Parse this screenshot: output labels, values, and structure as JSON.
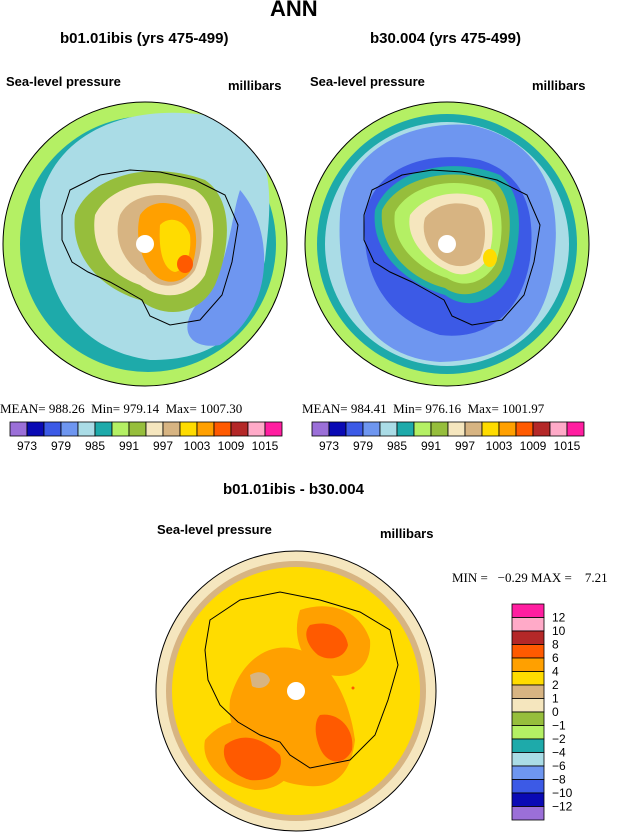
{
  "page_title": "ANN",
  "panels": [
    {
      "title": "b01.01ibis (yrs 475-499)",
      "variable": "Sea-level pressure",
      "units": "millibars",
      "stats": {
        "mean_label": "MEAN=",
        "mean": "988.26",
        "min_label": "Min=",
        "min": "979.14",
        "max_label": "Max=",
        "max": "1007.30"
      }
    },
    {
      "title": "b30.004 (yrs 475-499)",
      "variable": "Sea-level pressure",
      "units": "millibars",
      "stats": {
        "mean_label": "MEAN=",
        "mean": "984.41",
        "min_label": "Min=",
        "min": "976.16",
        "max_label": "Max=",
        "max": "1001.97"
      }
    }
  ],
  "colorbar_top": {
    "colors": [
      "#9b6fd8",
      "#0a0ab4",
      "#3c5ae6",
      "#6e96f0",
      "#aadce6",
      "#1eaaaa",
      "#b4f064",
      "#96be3c",
      "#f5e6be",
      "#d7b482",
      "#ffdc00",
      "#ffa000",
      "#ff5a00",
      "#b42828",
      "#ffaac8",
      "#ff1ea0"
    ],
    "labels": [
      "973",
      "979",
      "985",
      "991",
      "997",
      "1003",
      "1009",
      "1015"
    ]
  },
  "diff": {
    "title": "b01.01ibis - b30.004",
    "variable": "Sea-level pressure",
    "units": "millibars",
    "stats_text": "MIN =   −0.29 MAX =    7.21",
    "colorbar": {
      "colors_top_to_bottom": [
        "#ff1ea0",
        "#ffaac8",
        "#b42828",
        "#ff5a00",
        "#ffa000",
        "#ffdc00",
        "#d7b482",
        "#f5e6be",
        "#96be3c",
        "#b4f064",
        "#1eaaaa",
        "#aadce6",
        "#6e96f0",
        "#3c5ae6",
        "#0a0ab4",
        "#9b6fd8"
      ],
      "labels_top_to_bottom": [
        "12",
        "10",
        "8",
        "6",
        "4",
        "2",
        "1",
        "0",
        "−1",
        "−2",
        "−4",
        "−6",
        "−8",
        "−10",
        "−12"
      ]
    }
  }
}
